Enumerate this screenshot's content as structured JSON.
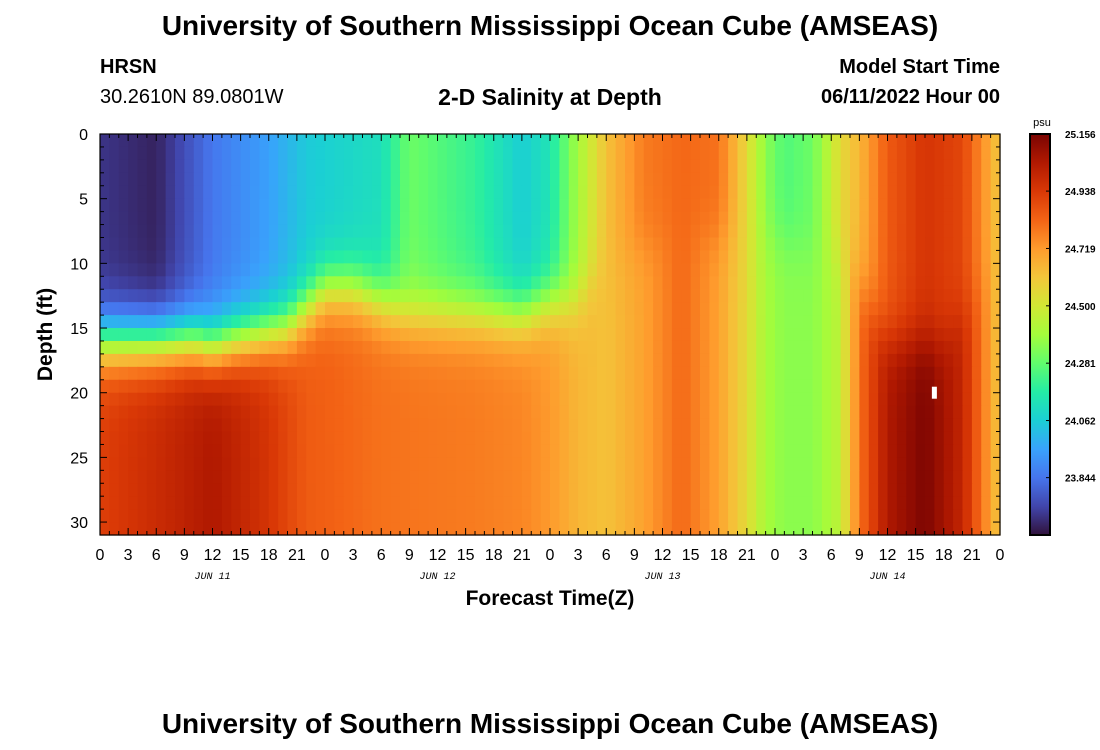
{
  "header": {
    "title": "University of Southern Mississippi Ocean Cube (AMSEAS)",
    "station": "HRSN",
    "coords": "30.2610N  89.0801W",
    "subtitle": "2-D Salinity at Depth",
    "model_start_label": "Model Start Time",
    "model_start_value": "06/11/2022 Hour 00"
  },
  "footer": {
    "title": "University of Southern Mississippi Ocean Cube (AMSEAS)"
  },
  "chart_data": {
    "type": "heatmap",
    "title": "2-D Salinity at Depth",
    "xlabel": "Forecast Time(Z)",
    "ylabel": "Depth (ft)",
    "x_hours": [
      0,
      96
    ],
    "y_range": [
      0,
      31
    ],
    "x_tick_labels": [
      "0",
      "3",
      "6",
      "9",
      "12",
      "15",
      "18",
      "21",
      "0",
      "3",
      "6",
      "9",
      "12",
      "15",
      "18",
      "21",
      "0",
      "3",
      "6",
      "9",
      "12",
      "15",
      "18",
      "21",
      "0",
      "3",
      "6",
      "9",
      "12",
      "15",
      "18",
      "21",
      "0"
    ],
    "day_labels": [
      "JUN 11",
      "JUN 12",
      "JUN 13",
      "JUN 14"
    ],
    "y_tick_labels": [
      "0",
      "5",
      "10",
      "15",
      "20",
      "25",
      "30"
    ],
    "y_tick_values": [
      0,
      5,
      10,
      15,
      20,
      25,
      30
    ],
    "colorbar": {
      "unit": "psu",
      "min": 23.625,
      "max": 25.156,
      "tick_labels": [
        "25.156",
        "24.938",
        "24.719",
        "24.500",
        "24.281",
        "24.062",
        "23.844"
      ],
      "tick_values": [
        25.156,
        24.938,
        24.719,
        24.5,
        24.281,
        24.062,
        23.844
      ],
      "colors": [
        "#30123b",
        "#4145ab",
        "#4675ed",
        "#39a2fc",
        "#1bcfd4",
        "#24eca6",
        "#61fc6c",
        "#a4fc3b",
        "#d1e834",
        "#f3c63a",
        "#fe9b2d",
        "#f36315",
        "#d93806",
        "#b11901",
        "#7a0402"
      ]
    },
    "surface_profile": [
      [
        0,
        23.7
      ],
      [
        6,
        23.66
      ],
      [
        12,
        23.85
      ],
      [
        18,
        23.95
      ],
      [
        22,
        24.05
      ],
      [
        30,
        24.12
      ],
      [
        33,
        24.3
      ],
      [
        40,
        24.2
      ],
      [
        45,
        24.06
      ],
      [
        48,
        24.14
      ],
      [
        51,
        24.4
      ],
      [
        54,
        24.62
      ],
      [
        58,
        24.78
      ],
      [
        62,
        24.82
      ],
      [
        66,
        24.8
      ],
      [
        69,
        24.55
      ],
      [
        71,
        24.35
      ],
      [
        73,
        24.25
      ],
      [
        76,
        24.3
      ],
      [
        79,
        24.55
      ],
      [
        81,
        24.65
      ],
      [
        84,
        24.85
      ],
      [
        88,
        24.95
      ],
      [
        92,
        24.9
      ],
      [
        96,
        24.6
      ]
    ],
    "deep_profile": [
      [
        0,
        24.92
      ],
      [
        6,
        24.98
      ],
      [
        12,
        25.05
      ],
      [
        18,
        24.95
      ],
      [
        22,
        24.85
      ],
      [
        30,
        24.8
      ],
      [
        40,
        24.78
      ],
      [
        45,
        24.76
      ],
      [
        48,
        24.72
      ],
      [
        51,
        24.65
      ],
      [
        54,
        24.62
      ],
      [
        58,
        24.7
      ],
      [
        62,
        24.82
      ],
      [
        66,
        24.7
      ],
      [
        69,
        24.55
      ],
      [
        71,
        24.4
      ],
      [
        73,
        24.35
      ],
      [
        76,
        24.35
      ],
      [
        79,
        24.45
      ],
      [
        81,
        24.8
      ],
      [
        84,
        25.05
      ],
      [
        88,
        25.15
      ],
      [
        92,
        25.0
      ],
      [
        96,
        24.6
      ]
    ],
    "halocline_depth_ft": [
      [
        0,
        16
      ],
      [
        10,
        16
      ],
      [
        12,
        16.5
      ],
      [
        14,
        16
      ],
      [
        20,
        15
      ],
      [
        24,
        12
      ],
      [
        27,
        12
      ],
      [
        33,
        14
      ],
      [
        40,
        14
      ],
      [
        45,
        14
      ],
      [
        48,
        13
      ],
      [
        51,
        13
      ],
      [
        54,
        10
      ],
      [
        60,
        8
      ],
      [
        66,
        8
      ],
      [
        72,
        8
      ],
      [
        80,
        10
      ],
      [
        84,
        16
      ],
      [
        90,
        16
      ],
      [
        96,
        10
      ]
    ],
    "marker": {
      "hour": 89,
      "depth_ft": 20
    }
  }
}
